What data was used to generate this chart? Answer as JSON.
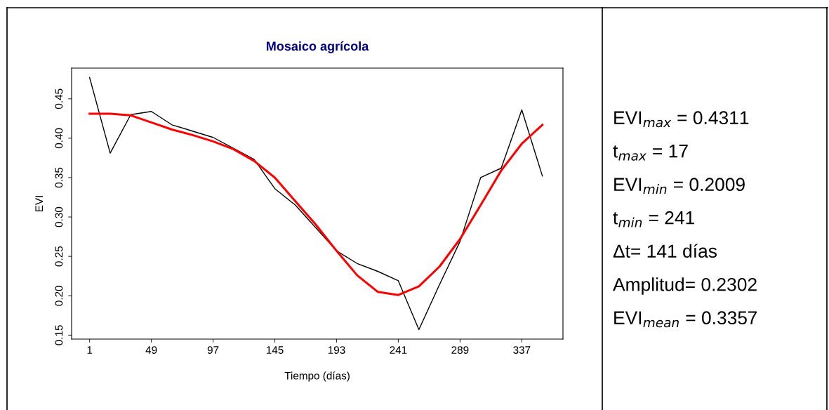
{
  "chart_data": {
    "type": "line",
    "title": "Mosaico agrícola",
    "xlabel": "Tiempo (días)",
    "ylabel": "EVI",
    "x": [
      1,
      17,
      33,
      49,
      65,
      81,
      97,
      113,
      129,
      145,
      161,
      177,
      193,
      209,
      225,
      241,
      257,
      273,
      289,
      305,
      321,
      337,
      353
    ],
    "series": [
      {
        "color": "#000000",
        "values": [
          0.477,
          0.381,
          0.43,
          0.434,
          0.417,
          0.409,
          0.401,
          0.387,
          0.373,
          0.336,
          0.315,
          0.286,
          0.257,
          0.241,
          0.231,
          0.219,
          0.157,
          0.214,
          0.269,
          0.35,
          0.362,
          0.436,
          0.352
        ]
      },
      {
        "color": "#ff0000",
        "values": [
          0.431,
          0.431,
          0.429,
          0.42,
          0.411,
          0.404,
          0.396,
          0.386,
          0.371,
          0.35,
          0.32,
          0.29,
          0.257,
          0.226,
          0.205,
          0.201,
          0.212,
          0.237,
          0.272,
          0.315,
          0.359,
          0.393,
          0.417
        ]
      }
    ],
    "xlim": [
      -13,
      369
    ],
    "ylim": [
      0.145,
      0.489
    ],
    "xticks": [
      1,
      49,
      97,
      145,
      193,
      241,
      289,
      337
    ],
    "yticks": [
      {
        "value": 0.15,
        "label": "0.15"
      },
      {
        "value": 0.2,
        "label": "0.20"
      },
      {
        "value": 0.25,
        "label": "0.25"
      },
      {
        "value": 0.3,
        "label": "0.30"
      },
      {
        "value": 0.35,
        "label": "0.35"
      },
      {
        "value": 0.4,
        "label": "0.40"
      },
      {
        "value": 0.45,
        "label": "0.45"
      }
    ],
    "grid": false,
    "legend": false,
    "marker": "none",
    "line_style": "solid",
    "annotations": [
      "EVI$_{max}$ = 0.4311",
      "t$_{max}$ = 17",
      "EVI$_{min}$ = 0.2009",
      "t$_{min}$ = 241",
      "Δt= 141 días",
      "Amplitud= 0.2302",
      "EVI$_{mean}$ = 0.3357"
    ]
  }
}
